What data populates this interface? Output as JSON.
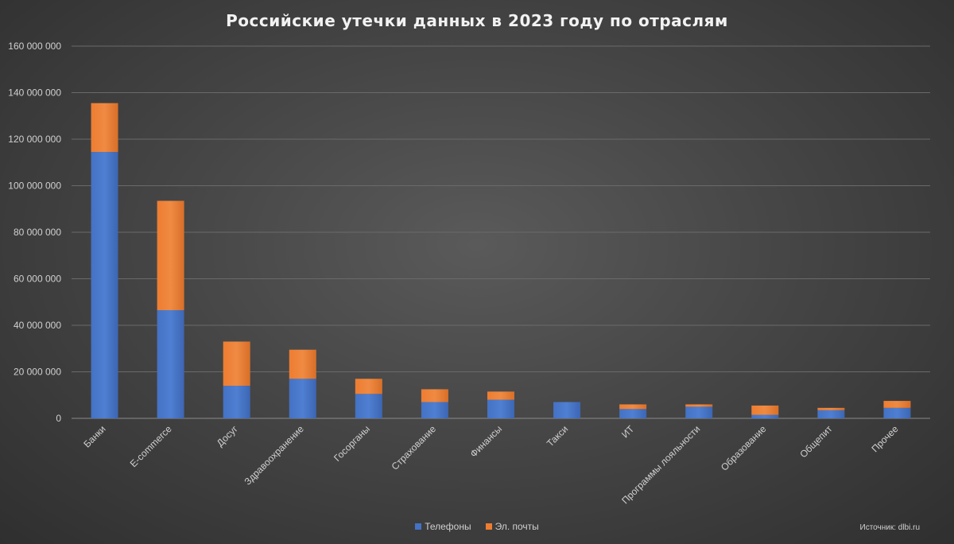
{
  "chart_data": {
    "type": "bar",
    "stacked": true,
    "title": "Российские утечки данных в 2023 году по отраслям",
    "categories": [
      "Банки",
      "E-commerce",
      "Досуг",
      "Здравоохранение",
      "Госорганы",
      "Страхование",
      "Финансы",
      "Такси",
      "ИТ",
      "Программы лояльности",
      "Образование",
      "Общепит",
      "Прочее"
    ],
    "series": [
      {
        "name": "Телефоны",
        "color": "#4472c4",
        "values": [
          114500000,
          46500000,
          14000000,
          17000000,
          10500000,
          7000000,
          8000000,
          7000000,
          4000000,
          5000000,
          1500000,
          3500000,
          4500000
        ]
      },
      {
        "name": "Эл. почты",
        "color": "#ed7d31",
        "values": [
          21000000,
          47000000,
          19000000,
          12500000,
          6500000,
          5500000,
          3500000,
          0,
          2000000,
          1000000,
          4000000,
          1000000,
          3000000
        ]
      }
    ],
    "ylim": [
      0,
      160000000
    ],
    "yticks": [
      0,
      20000000,
      40000000,
      60000000,
      80000000,
      100000000,
      120000000,
      140000000,
      160000000
    ],
    "ytick_labels": [
      "0",
      "20 000 000",
      "40 000 000",
      "60 000 000",
      "80 000 000",
      "100 000 000",
      "120 000 000",
      "140 000 000",
      "160 000 000"
    ],
    "grid": true,
    "legend_position": "bottom"
  },
  "source_text": "Источник: dlbi.ru"
}
